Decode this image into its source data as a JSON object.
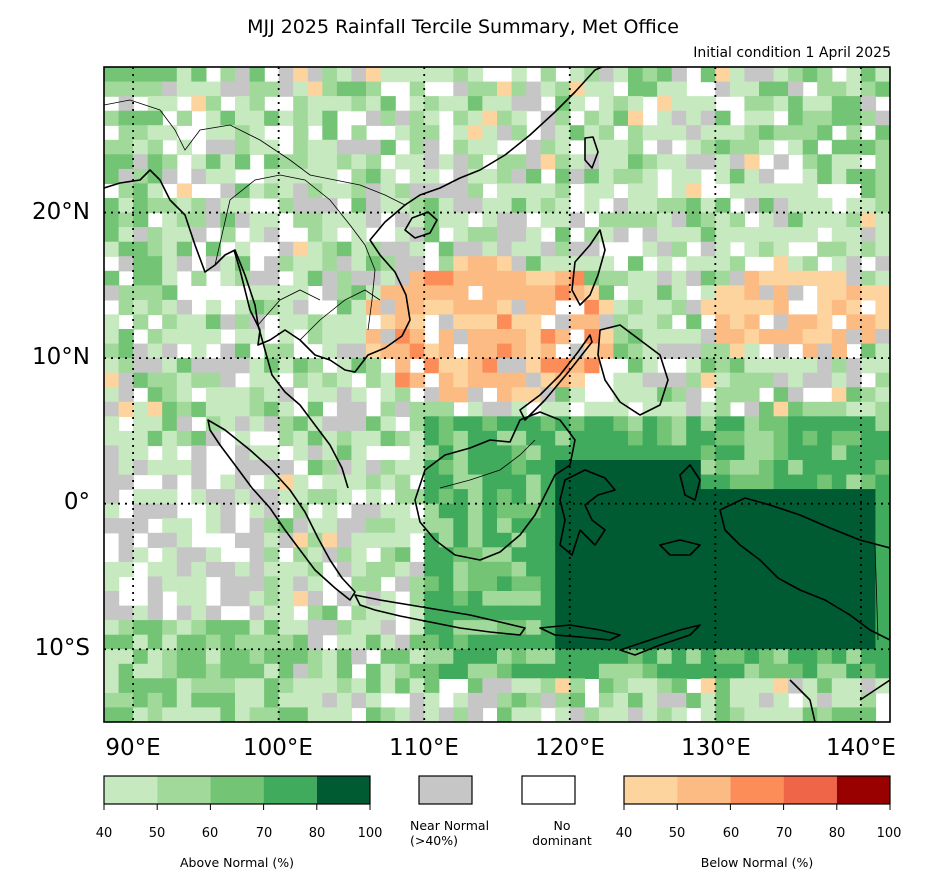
{
  "title": "MJJ 2025 Rainfall Tercile Summary, Met Office",
  "subtitle": "Initial condition 1 April 2025",
  "map": {
    "lon_range": [
      88,
      142
    ],
    "lat_range": [
      -15,
      30
    ],
    "lat_labels": [
      "20°N",
      "10°N",
      "0°",
      "10°S"
    ],
    "lat_values": [
      20,
      10,
      0,
      -10
    ],
    "lon_labels": [
      "90°E",
      "100°E",
      "110°E",
      "120°E",
      "130°E",
      "140°E"
    ],
    "lon_values": [
      90,
      100,
      110,
      120,
      130,
      140
    ]
  },
  "legend": {
    "above_normal": {
      "label": "Above Normal (%)",
      "ticks": [
        "40",
        "50",
        "60",
        "70",
        "80",
        "100"
      ],
      "colors": [
        "#c7e9c0",
        "#a1d99b",
        "#74c476",
        "#41ab5d",
        "#005a32"
      ]
    },
    "near_normal": {
      "label": "Near Normal\n(>40%)",
      "color": "#c6c6c6"
    },
    "no_dominant": {
      "label": "No\ndominant",
      "color": "#ffffff"
    },
    "below_normal": {
      "label": "Below Normal (%)",
      "ticks": [
        "40",
        "50",
        "60",
        "70",
        "80",
        "100"
      ],
      "colors": [
        "#fdd49e",
        "#fdbb84",
        "#fc8d59",
        "#ef6548",
        "#990000"
      ]
    }
  }
}
